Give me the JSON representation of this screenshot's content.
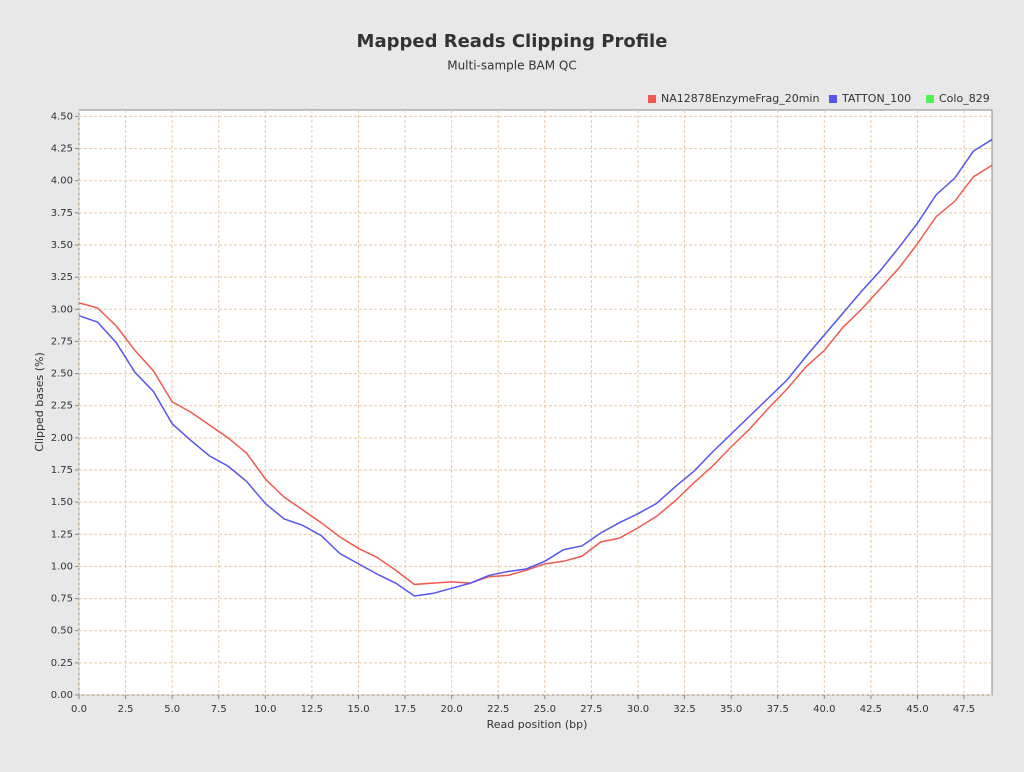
{
  "chart_data": {
    "type": "line",
    "title": "Mapped Reads Clipping Profile",
    "subtitle": "Multi-sample BAM QC",
    "x_label": "Read position (bp)",
    "y_label": "Clipped bases (%)",
    "x": [
      0,
      1,
      2,
      3,
      4,
      5,
      6,
      7,
      8,
      9,
      10,
      11,
      12,
      13,
      14,
      15,
      16,
      17,
      18,
      19,
      20,
      21,
      22,
      23,
      24,
      25,
      26,
      27,
      28,
      29,
      30,
      31,
      32,
      33,
      34,
      35,
      36,
      37,
      38,
      39,
      40,
      41,
      42,
      43,
      44,
      45,
      46,
      47,
      48,
      49
    ],
    "series": [
      {
        "name": "NA12878EnzymeFrag_20min",
        "color": "#f05a50",
        "values": [
          3.05,
          3.01,
          2.87,
          2.68,
          2.52,
          2.28,
          2.2,
          2.1,
          2.0,
          1.88,
          1.68,
          1.54,
          1.44,
          1.34,
          1.23,
          1.14,
          1.07,
          0.97,
          0.86,
          0.87,
          0.88,
          0.87,
          0.92,
          0.93,
          0.97,
          1.02,
          1.04,
          1.08,
          1.19,
          1.22,
          1.3,
          1.39,
          1.51,
          1.65,
          1.78,
          1.93,
          2.07,
          2.23,
          2.38,
          2.55,
          2.68,
          2.86,
          3.0,
          3.16,
          3.32,
          3.51,
          3.72,
          3.84,
          4.03,
          4.12
        ]
      },
      {
        "name": "TATTON_100",
        "color": "#5555f0",
        "values": [
          2.95,
          2.9,
          2.74,
          2.51,
          2.36,
          2.11,
          1.98,
          1.86,
          1.78,
          1.66,
          1.49,
          1.37,
          1.32,
          1.24,
          1.1,
          1.02,
          0.94,
          0.87,
          0.77,
          0.79,
          0.83,
          0.87,
          0.93,
          0.96,
          0.98,
          1.04,
          1.13,
          1.16,
          1.26,
          1.34,
          1.41,
          1.49,
          1.62,
          1.74,
          1.89,
          2.03,
          2.17,
          2.31,
          2.45,
          2.63,
          2.8,
          2.97,
          3.14,
          3.3,
          3.48,
          3.67,
          3.89,
          4.02,
          4.23,
          4.32
        ]
      },
      {
        "name": "Colo_829",
        "color": "#55f055",
        "values": [
          null,
          null,
          null,
          null,
          null,
          null,
          null,
          null,
          null,
          null,
          null,
          null,
          null,
          null,
          null,
          null,
          null,
          null,
          null,
          null,
          null,
          null,
          null,
          null,
          null,
          null,
          null,
          null,
          null,
          null,
          null,
          null,
          null,
          null,
          null,
          null,
          null,
          null,
          null,
          null,
          null,
          null,
          null,
          null,
          null,
          null,
          null,
          null,
          null,
          null
        ]
      }
    ],
    "xlim": [
      0,
      49
    ],
    "ylim": [
      0,
      4.55
    ],
    "xticks": [
      {
        "value": 0,
        "label": "0.0"
      },
      {
        "value": 2.5,
        "label": "2.5"
      },
      {
        "value": 5,
        "label": "5.0"
      },
      {
        "value": 7.5,
        "label": "7.5"
      },
      {
        "value": 10,
        "label": "10.0"
      },
      {
        "value": 12.5,
        "label": "12.5"
      },
      {
        "value": 15,
        "label": "15.0"
      },
      {
        "value": 17.5,
        "label": "17.5"
      },
      {
        "value": 20,
        "label": "20.0"
      },
      {
        "value": 22.5,
        "label": "22.5"
      },
      {
        "value": 25,
        "label": "25.0"
      },
      {
        "value": 27.5,
        "label": "27.5"
      },
      {
        "value": 30,
        "label": "30.0"
      },
      {
        "value": 32.5,
        "label": "32.5"
      },
      {
        "value": 35,
        "label": "35.0"
      },
      {
        "value": 37.5,
        "label": "37.5"
      },
      {
        "value": 40,
        "label": "40.0"
      },
      {
        "value": 42.5,
        "label": "42.5"
      },
      {
        "value": 45,
        "label": "45.0"
      },
      {
        "value": 47.5,
        "label": "47.5"
      }
    ],
    "yticks": [
      {
        "value": 0,
        "label": "0.00"
      },
      {
        "value": 0.25,
        "label": "0.25"
      },
      {
        "value": 0.5,
        "label": "0.50"
      },
      {
        "value": 0.75,
        "label": "0.75"
      },
      {
        "value": 1,
        "label": "1.00"
      },
      {
        "value": 1.25,
        "label": "1.25"
      },
      {
        "value": 1.5,
        "label": "1.50"
      },
      {
        "value": 1.75,
        "label": "1.75"
      },
      {
        "value": 2,
        "label": "2.00"
      },
      {
        "value": 2.25,
        "label": "2.25"
      },
      {
        "value": 2.5,
        "label": "2.50"
      },
      {
        "value": 2.75,
        "label": "2.75"
      },
      {
        "value": 3,
        "label": "3.00"
      },
      {
        "value": 3.25,
        "label": "3.25"
      },
      {
        "value": 3.5,
        "label": "3.50"
      },
      {
        "value": 3.75,
        "label": "3.75"
      },
      {
        "value": 4,
        "label": "4.00"
      },
      {
        "value": 4.25,
        "label": "4.25"
      },
      {
        "value": 4.5,
        "label": "4.50"
      }
    ],
    "grid": true,
    "legend": "top-right"
  }
}
